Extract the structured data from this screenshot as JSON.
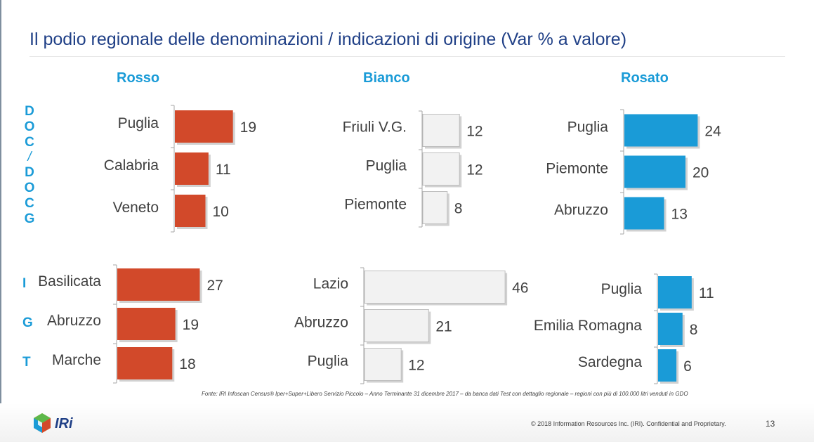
{
  "title": "Il podio regionale delle denominazioni / indicazioni di origine (Var % a valore)",
  "columns": [
    "Rosso",
    "Bianco",
    "Rosato"
  ],
  "row_labels": {
    "dop": [
      "D",
      "O",
      "C",
      "/",
      "D",
      "O",
      "C",
      "G"
    ],
    "igt": [
      "I",
      "G",
      "T"
    ]
  },
  "colors": {
    "rosso": "#d2492a",
    "bianco": "#f2f2f2",
    "rosato": "#1a9bd7",
    "accent": "#1a9bd7",
    "title": "#1f3f86"
  },
  "chart_data": [
    {
      "type": "bar",
      "group": "DOC/DOCG",
      "column": "Rosso",
      "categories": [
        "Puglia",
        "Calabria",
        "Veneto"
      ],
      "values": [
        19,
        11,
        10
      ]
    },
    {
      "type": "bar",
      "group": "DOC/DOCG",
      "column": "Bianco",
      "categories": [
        "Friuli V.G.",
        "Puglia",
        "Piemonte"
      ],
      "values": [
        12,
        12,
        8
      ]
    },
    {
      "type": "bar",
      "group": "DOC/DOCG",
      "column": "Rosato",
      "categories": [
        "Puglia",
        "Piemonte",
        "Abruzzo"
      ],
      "values": [
        24,
        20,
        13
      ]
    },
    {
      "type": "bar",
      "group": "IGT",
      "column": "Rosso",
      "categories": [
        "Basilicata",
        "Abruzzo",
        "Marche"
      ],
      "values": [
        27,
        19,
        18
      ]
    },
    {
      "type": "bar",
      "group": "IGT",
      "column": "Bianco",
      "categories": [
        "Lazio",
        "Abruzzo",
        "Puglia"
      ],
      "values": [
        46,
        21,
        12
      ]
    },
    {
      "type": "bar",
      "group": "IGT",
      "column": "Rosato",
      "categories": [
        "Puglia",
        "Emilia Romagna",
        "Sardegna"
      ],
      "values": [
        11,
        8,
        6
      ]
    }
  ],
  "footnote": "Fonte: IRI  Infoscan Census®  Iper+Super+Libero Servizio Piccolo – Anno Terminante 31 dicembre 2017 – da banca dati Test con dettaglio regionale – regioni con più di 100.000 litri venduti in GDO",
  "footer": {
    "logo_text": "IRi",
    "copyright": "© 2018 Information Resources Inc. (IRI). Confidential and Proprietary.",
    "page_number": "13"
  }
}
